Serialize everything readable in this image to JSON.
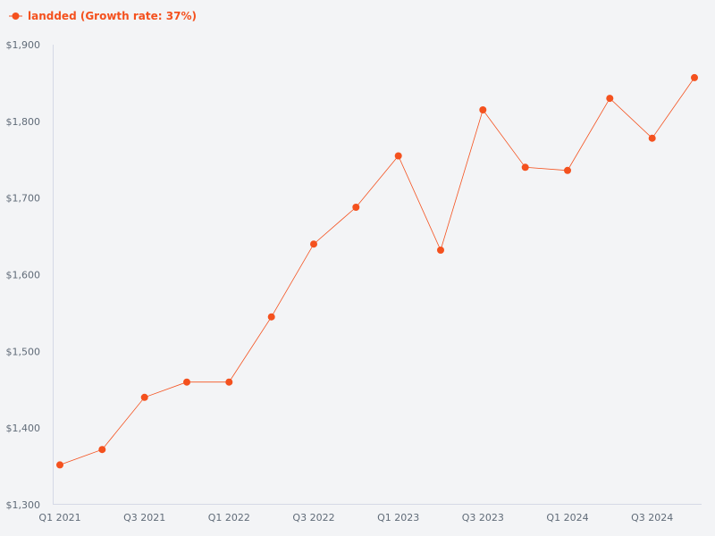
{
  "chart_data": {
    "type": "line",
    "legend_position": "top-left",
    "grid": false,
    "accent_color": "#f4511e",
    "axis_color": "#d5d9e6",
    "tick_color": "#606b78",
    "background_color": "#f3f4f6",
    "y_tick_prefix": "$",
    "ylim": [
      1300,
      1900
    ],
    "y_ticks": [
      1300,
      1400,
      1500,
      1600,
      1700,
      1800,
      1900
    ],
    "y_tick_labels": [
      "$1,300",
      "$1,400",
      "$1,500",
      "$1,600",
      "$1,700",
      "$1,800",
      "$1,900"
    ],
    "x": [
      "Q1 2021",
      "Q2 2021",
      "Q3 2021",
      "Q4 2021",
      "Q1 2022",
      "Q2 2022",
      "Q3 2022",
      "Q4 2022",
      "Q1 2023",
      "Q2 2023",
      "Q3 2023",
      "Q4 2023",
      "Q1 2024",
      "Q2 2024",
      "Q3 2024",
      "Q4 2024"
    ],
    "x_tick_labels": [
      "Q1 2021",
      "Q3 2021",
      "Q1 2022",
      "Q3 2022",
      "Q1 2023",
      "Q3 2023",
      "Q1 2024",
      "Q3 2024"
    ],
    "series": [
      {
        "name": "landded (Growth rate: 37%)",
        "color": "#f4511e",
        "values": [
          1352,
          1372,
          1440,
          1460,
          1460,
          1545,
          1640,
          1688,
          1755,
          1632,
          1815,
          1740,
          1736,
          1830,
          1778,
          1857
        ]
      }
    ]
  }
}
